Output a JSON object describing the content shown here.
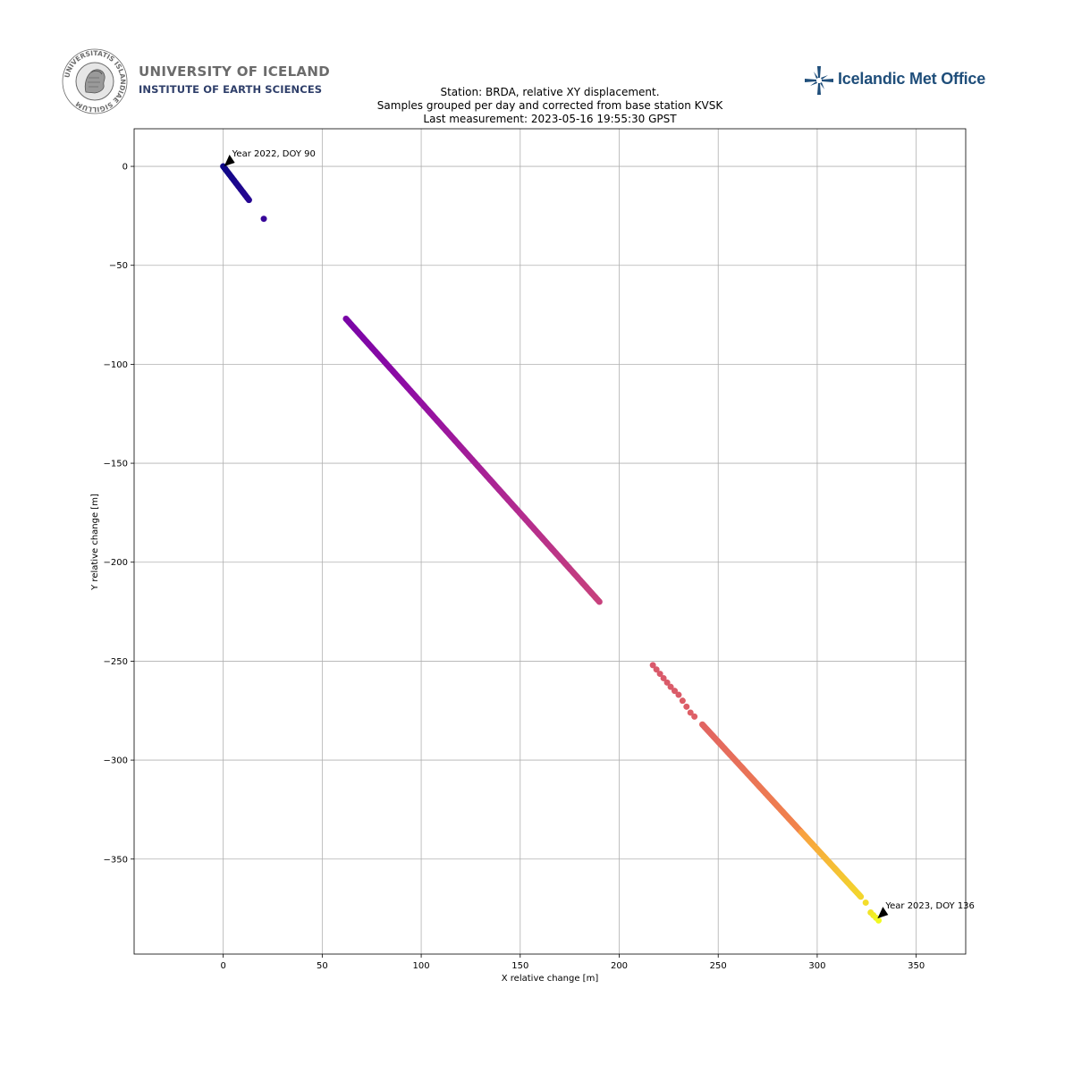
{
  "header": {
    "uni_seal_text": "UNIVERSITATIS ISLANDIAE SIGILLUM",
    "uni_name": "UNIVERSITY OF ICELAND",
    "uni_institute": "INSTITUTE OF EARTH SCIENCES",
    "imo_name": "Icelandic Met Office"
  },
  "colors": {
    "brand_blue": "#1f4e7a",
    "grid": "#b0b0b0",
    "uni_gray": "#6b6b6b"
  },
  "chart_data": {
    "type": "scatter",
    "title_lines": [
      "Station: BRDA, relative XY displacement.",
      "Samples grouped per day and corrected from base station KVSK",
      "Last measurement: 2023-05-16 19:55:30 GPST"
    ],
    "xlabel": "X relative change [m]",
    "ylabel": "Y relative change [m]",
    "xlim": [
      -45,
      375
    ],
    "ylim": [
      -398,
      19
    ],
    "xticks": [
      0,
      50,
      100,
      150,
      200,
      250,
      300,
      350
    ],
    "yticks": [
      0,
      -50,
      -100,
      -150,
      -200,
      -250,
      -300,
      -350
    ],
    "grid": true,
    "colormap": "plasma",
    "segments": [
      {
        "x": [
          0,
          13
        ],
        "y": [
          0,
          -17
        ],
        "n": 30,
        "color_range": [
          0.0,
          0.06
        ]
      },
      {
        "x": [
          20.5,
          20.5
        ],
        "y": [
          -26.5,
          -26.5
        ],
        "n": 1,
        "color_range": [
          0.1,
          0.1
        ]
      },
      {
        "x": [
          62,
          190
        ],
        "y": [
          -77,
          -220
        ],
        "n": 260,
        "color_range": [
          0.3,
          0.6
        ]
      },
      {
        "x": [
          217,
          226
        ],
        "y": [
          -252,
          -263
        ],
        "n": 6,
        "color_range": [
          0.7,
          0.71
        ]
      },
      {
        "x": [
          228,
          230
        ],
        "y": [
          -265,
          -267
        ],
        "n": 2,
        "color_range": [
          0.71,
          0.71
        ]
      },
      {
        "x": [
          232,
          234
        ],
        "y": [
          -270,
          -273
        ],
        "n": 2,
        "color_range": [
          0.72,
          0.72
        ]
      },
      {
        "x": [
          236,
          238
        ],
        "y": [
          -276,
          -278
        ],
        "n": 2,
        "color_range": [
          0.73,
          0.73
        ]
      },
      {
        "x": [
          242,
          322
        ],
        "y": [
          -282,
          -369
        ],
        "n": 180,
        "color_range": [
          0.75,
          0.95
        ]
      },
      {
        "x": [
          324.5,
          324.5
        ],
        "y": [
          -372,
          -372
        ],
        "n": 1,
        "color_range": [
          0.96,
          0.96
        ]
      },
      {
        "x": [
          327,
          331
        ],
        "y": [
          -377,
          -381
        ],
        "n": 4,
        "color_range": [
          0.97,
          1.0
        ]
      }
    ],
    "annotations": [
      {
        "text": "Year 2022, DOY 90",
        "x": 0,
        "y": 0
      },
      {
        "text": "Year 2023, DOY 136",
        "x": 330,
        "y": -380
      }
    ]
  }
}
